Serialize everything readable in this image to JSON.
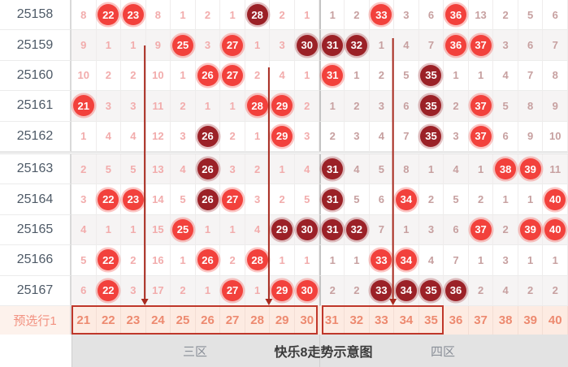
{
  "chart_data": {
    "type": "table",
    "title": "快乐8走势示意图",
    "zone_left_label": "三区",
    "zone_right_label": "四区",
    "column_headers": [
      "21",
      "22",
      "23",
      "24",
      "25",
      "26",
      "27",
      "28",
      "29",
      "30",
      "31",
      "32",
      "33",
      "34",
      "35",
      "36",
      "37",
      "38",
      "39",
      "40"
    ],
    "period_break_after": "25162",
    "legend_note": "circled values are drawn numbers (red = drawn, dark-red variant), plain values are miss counts",
    "rows": [
      {
        "issue": "25158",
        "cells": [
          {
            "v": "8"
          },
          {
            "v": "22",
            "hit": "red"
          },
          {
            "v": "23",
            "hit": "red"
          },
          {
            "v": "8"
          },
          {
            "v": "1"
          },
          {
            "v": "2"
          },
          {
            "v": "1"
          },
          {
            "v": "28",
            "hit": "dark"
          },
          {
            "v": "2"
          },
          {
            "v": "1"
          },
          {
            "v": "1"
          },
          {
            "v": "2"
          },
          {
            "v": "33",
            "hit": "red"
          },
          {
            "v": "3"
          },
          {
            "v": "6"
          },
          {
            "v": "36",
            "hit": "red"
          },
          {
            "v": "13"
          },
          {
            "v": "2"
          },
          {
            "v": "5"
          },
          {
            "v": "6"
          }
        ]
      },
      {
        "issue": "25159",
        "cells": [
          {
            "v": "9"
          },
          {
            "v": "1"
          },
          {
            "v": "1"
          },
          {
            "v": "9"
          },
          {
            "v": "25",
            "hit": "red"
          },
          {
            "v": "3"
          },
          {
            "v": "27",
            "hit": "red"
          },
          {
            "v": "1"
          },
          {
            "v": "3"
          },
          {
            "v": "30",
            "hit": "dark"
          },
          {
            "v": "31",
            "hit": "dark"
          },
          {
            "v": "32",
            "hit": "dark"
          },
          {
            "v": "1"
          },
          {
            "v": "4"
          },
          {
            "v": "7"
          },
          {
            "v": "36",
            "hit": "red"
          },
          {
            "v": "37",
            "hit": "red"
          },
          {
            "v": "3"
          },
          {
            "v": "6"
          },
          {
            "v": "7"
          }
        ]
      },
      {
        "issue": "25160",
        "cells": [
          {
            "v": "10"
          },
          {
            "v": "2"
          },
          {
            "v": "2"
          },
          {
            "v": "10"
          },
          {
            "v": "1"
          },
          {
            "v": "26",
            "hit": "red"
          },
          {
            "v": "27",
            "hit": "red"
          },
          {
            "v": "2"
          },
          {
            "v": "4"
          },
          {
            "v": "1"
          },
          {
            "v": "31",
            "hit": "red"
          },
          {
            "v": "1"
          },
          {
            "v": "2"
          },
          {
            "v": "5"
          },
          {
            "v": "35",
            "hit": "dark"
          },
          {
            "v": "1"
          },
          {
            "v": "1"
          },
          {
            "v": "4"
          },
          {
            "v": "7"
          },
          {
            "v": "8"
          }
        ]
      },
      {
        "issue": "25161",
        "cells": [
          {
            "v": "21",
            "hit": "red"
          },
          {
            "v": "3"
          },
          {
            "v": "3"
          },
          {
            "v": "11"
          },
          {
            "v": "2"
          },
          {
            "v": "1"
          },
          {
            "v": "1"
          },
          {
            "v": "28",
            "hit": "red"
          },
          {
            "v": "29",
            "hit": "red"
          },
          {
            "v": "2"
          },
          {
            "v": "1"
          },
          {
            "v": "2"
          },
          {
            "v": "3"
          },
          {
            "v": "6"
          },
          {
            "v": "35",
            "hit": "dark"
          },
          {
            "v": "2"
          },
          {
            "v": "37",
            "hit": "red"
          },
          {
            "v": "5"
          },
          {
            "v": "8"
          },
          {
            "v": "9"
          }
        ]
      },
      {
        "issue": "25162",
        "cells": [
          {
            "v": "1"
          },
          {
            "v": "4"
          },
          {
            "v": "4"
          },
          {
            "v": "12"
          },
          {
            "v": "3"
          },
          {
            "v": "26",
            "hit": "dark"
          },
          {
            "v": "2"
          },
          {
            "v": "1"
          },
          {
            "v": "29",
            "hit": "red"
          },
          {
            "v": "3"
          },
          {
            "v": "2"
          },
          {
            "v": "3"
          },
          {
            "v": "4"
          },
          {
            "v": "7"
          },
          {
            "v": "35",
            "hit": "dark"
          },
          {
            "v": "3"
          },
          {
            "v": "37",
            "hit": "red"
          },
          {
            "v": "6"
          },
          {
            "v": "9"
          },
          {
            "v": "10"
          }
        ]
      },
      {
        "issue": "25163",
        "cells": [
          {
            "v": "2"
          },
          {
            "v": "5"
          },
          {
            "v": "5"
          },
          {
            "v": "13"
          },
          {
            "v": "4"
          },
          {
            "v": "26",
            "hit": "dark"
          },
          {
            "v": "3"
          },
          {
            "v": "2"
          },
          {
            "v": "1"
          },
          {
            "v": "4"
          },
          {
            "v": "31",
            "hit": "dark"
          },
          {
            "v": "4"
          },
          {
            "v": "5"
          },
          {
            "v": "8"
          },
          {
            "v": "1"
          },
          {
            "v": "4"
          },
          {
            "v": "1"
          },
          {
            "v": "38",
            "hit": "red"
          },
          {
            "v": "39",
            "hit": "red"
          },
          {
            "v": "11"
          }
        ]
      },
      {
        "issue": "25164",
        "cells": [
          {
            "v": "3"
          },
          {
            "v": "22",
            "hit": "red"
          },
          {
            "v": "23",
            "hit": "red"
          },
          {
            "v": "14"
          },
          {
            "v": "5"
          },
          {
            "v": "26",
            "hit": "dark"
          },
          {
            "v": "27",
            "hit": "red"
          },
          {
            "v": "3"
          },
          {
            "v": "2"
          },
          {
            "v": "5"
          },
          {
            "v": "31",
            "hit": "dark"
          },
          {
            "v": "5"
          },
          {
            "v": "6"
          },
          {
            "v": "34",
            "hit": "red"
          },
          {
            "v": "2"
          },
          {
            "v": "5"
          },
          {
            "v": "2"
          },
          {
            "v": "1"
          },
          {
            "v": "1"
          },
          {
            "v": "40",
            "hit": "red"
          }
        ]
      },
      {
        "issue": "25165",
        "cells": [
          {
            "v": "4"
          },
          {
            "v": "1"
          },
          {
            "v": "1"
          },
          {
            "v": "15"
          },
          {
            "v": "25",
            "hit": "red"
          },
          {
            "v": "1"
          },
          {
            "v": "1"
          },
          {
            "v": "4"
          },
          {
            "v": "29",
            "hit": "dark"
          },
          {
            "v": "30",
            "hit": "dark"
          },
          {
            "v": "31",
            "hit": "dark"
          },
          {
            "v": "32",
            "hit": "dark"
          },
          {
            "v": "7"
          },
          {
            "v": "1"
          },
          {
            "v": "3"
          },
          {
            "v": "6"
          },
          {
            "v": "37",
            "hit": "red"
          },
          {
            "v": "2"
          },
          {
            "v": "39",
            "hit": "red"
          },
          {
            "v": "40",
            "hit": "red"
          }
        ]
      },
      {
        "issue": "25166",
        "cells": [
          {
            "v": "5"
          },
          {
            "v": "22",
            "hit": "red"
          },
          {
            "v": "2"
          },
          {
            "v": "16"
          },
          {
            "v": "1"
          },
          {
            "v": "26",
            "hit": "red"
          },
          {
            "v": "2"
          },
          {
            "v": "28",
            "hit": "red"
          },
          {
            "v": "1"
          },
          {
            "v": "1"
          },
          {
            "v": "1"
          },
          {
            "v": "1"
          },
          {
            "v": "33",
            "hit": "red"
          },
          {
            "v": "34",
            "hit": "red"
          },
          {
            "v": "4"
          },
          {
            "v": "7"
          },
          {
            "v": "1"
          },
          {
            "v": "3"
          },
          {
            "v": "1"
          },
          {
            "v": "1"
          }
        ]
      },
      {
        "issue": "25167",
        "cells": [
          {
            "v": "6"
          },
          {
            "v": "22",
            "hit": "red"
          },
          {
            "v": "3"
          },
          {
            "v": "17"
          },
          {
            "v": "2"
          },
          {
            "v": "1"
          },
          {
            "v": "27",
            "hit": "red"
          },
          {
            "v": "1"
          },
          {
            "v": "29",
            "hit": "red"
          },
          {
            "v": "30",
            "hit": "red"
          },
          {
            "v": "2"
          },
          {
            "v": "2"
          },
          {
            "v": "33",
            "hit": "dark"
          },
          {
            "v": "34",
            "hit": "dark"
          },
          {
            "v": "35",
            "hit": "dark"
          },
          {
            "v": "36",
            "hit": "dark"
          },
          {
            "v": "2"
          },
          {
            "v": "4"
          },
          {
            "v": "2"
          },
          {
            "v": "2"
          }
        ]
      }
    ],
    "preselect": {
      "label": "预选行1",
      "values": [
        "21",
        "22",
        "23",
        "24",
        "25",
        "26",
        "27",
        "28",
        "29",
        "30",
        "31",
        "32",
        "33",
        "34",
        "35",
        "36",
        "37",
        "38",
        "39",
        "40"
      ]
    },
    "annotations": {
      "arrows": [
        {
          "between_columns": [
            "23",
            "24"
          ],
          "start_issue": "25159"
        },
        {
          "between_columns": [
            "28",
            "29"
          ],
          "start_issue": "25160"
        },
        {
          "between_columns": [
            "33",
            "34"
          ],
          "start_issue": "25159"
        }
      ],
      "boxes": [
        {
          "col_start": "21",
          "col_end": "30"
        },
        {
          "col_start": "31",
          "col_end": "35"
        }
      ]
    },
    "colors": {
      "hit_ball": "#f2413c",
      "hit_ball_dark": "#9b2127",
      "miss_zone3": "#f2acac",
      "miss_zone4": "#c7a0a0",
      "annotation_red": "#a82a1f",
      "box_border": "#bf372a",
      "preselect_number": "#ed8a70",
      "issue_text": "#4e5a67"
    }
  }
}
